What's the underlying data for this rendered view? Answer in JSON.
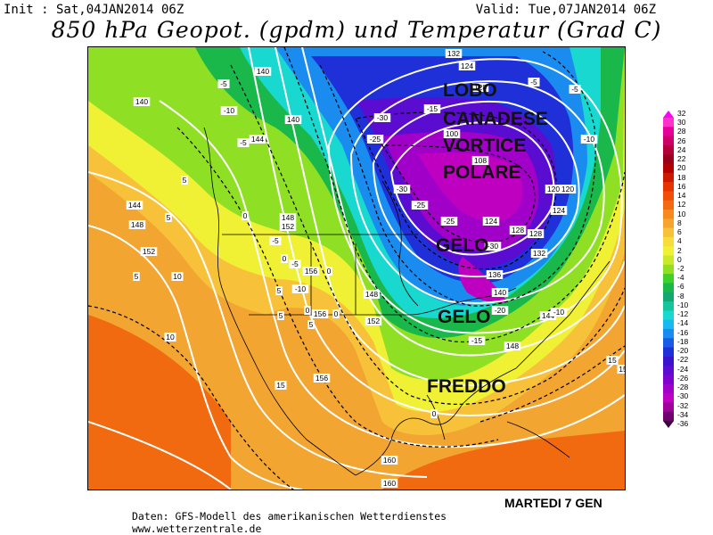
{
  "header": {
    "init": "Init : Sat,04JAN2014 06Z",
    "valid": "Valid: Tue,07JAN2014 06Z",
    "title": "850 hPa Geopot. (gpdm) und Temperatur (Grad C)"
  },
  "overlays": {
    "lobo": "LOBO",
    "canadese": "CANADESE",
    "vortice": "VORTICE",
    "polare": "POLARE",
    "gelo1": "GELO",
    "gelo2": "GELO",
    "freddo": "FREDDO"
  },
  "date_note": "MARTEDI 7 GEN",
  "credits": {
    "line1": "Daten: GFS-Modell des amerikanischen Wetterdienstes",
    "line2": "www.wetterzentrale.de"
  },
  "legend": {
    "labels": [
      "32",
      "30",
      "28",
      "26",
      "24",
      "22",
      "20",
      "18",
      "16",
      "14",
      "12",
      "10",
      "8",
      "6",
      "4",
      "2",
      "0",
      "-2",
      "-4",
      "-6",
      "-8",
      "-10",
      "-12",
      "-14",
      "-16",
      "-18",
      "-20",
      "-22",
      "-24",
      "-26",
      "-28",
      "-30",
      "-32",
      "-34",
      "-36"
    ],
    "colors": [
      "#ff00ff",
      "#ff33cc",
      "#e60099",
      "#cc0066",
      "#b3003a",
      "#99001a",
      "#b30000",
      "#cc1a00",
      "#e63300",
      "#f04f0a",
      "#f26a10",
      "#f58a1f",
      "#f5a52e",
      "#f7c23a",
      "#f7dc3a",
      "#f0f035",
      "#c8ea2a",
      "#8fe025",
      "#3fd02a",
      "#1ab84a",
      "#12a870",
      "#14c49a",
      "#18d8d0",
      "#18b8f0",
      "#1a8cf0",
      "#1a5ae6",
      "#2030d8",
      "#3a14cc",
      "#5a0cd0",
      "#8000d0",
      "#a000c8",
      "#c000c0",
      "#a0009a",
      "#700070",
      "#400040"
    ]
  },
  "map_labels": [
    {
      "text": "140"
    },
    {
      "text": "140"
    },
    {
      "text": "140"
    },
    {
      "text": "144"
    },
    {
      "text": "144"
    },
    {
      "text": "148"
    },
    {
      "text": "152"
    },
    {
      "text": "148"
    },
    {
      "text": "152"
    },
    {
      "text": "156"
    },
    {
      "text": "156"
    },
    {
      "text": "148"
    },
    {
      "text": "152"
    },
    {
      "text": "156"
    },
    {
      "text": "160"
    },
    {
      "text": "160"
    },
    {
      "text": "132"
    },
    {
      "text": "124"
    },
    {
      "text": "128"
    },
    {
      "text": "100"
    },
    {
      "text": "108"
    },
    {
      "text": "120"
    },
    {
      "text": "120"
    },
    {
      "text": "124"
    },
    {
      "text": "124"
    },
    {
      "text": "128"
    },
    {
      "text": "128"
    },
    {
      "text": "132"
    },
    {
      "text": "136"
    },
    {
      "text": "140"
    },
    {
      "text": "144"
    },
    {
      "text": "148"
    },
    {
      "text": "-5"
    },
    {
      "text": "-5"
    },
    {
      "text": "-5"
    },
    {
      "text": "-10"
    },
    {
      "text": "-15"
    },
    {
      "text": "-25"
    },
    {
      "text": "-30"
    },
    {
      "text": "-30"
    },
    {
      "text": "-25"
    },
    {
      "text": "-25"
    },
    {
      "text": "-30"
    },
    {
      "text": "-20"
    },
    {
      "text": "-15"
    },
    {
      "text": "-10"
    },
    {
      "text": "-5"
    },
    {
      "text": "-10"
    },
    {
      "text": "0"
    },
    {
      "text": "0"
    },
    {
      "text": "0"
    },
    {
      "text": "0"
    },
    {
      "text": "5"
    },
    {
      "text": "5"
    },
    {
      "text": "5"
    },
    {
      "text": "10"
    },
    {
      "text": "10"
    },
    {
      "text": "15"
    },
    {
      "text": "15"
    },
    {
      "text": "15"
    },
    {
      "text": "5"
    },
    {
      "text": "0"
    },
    {
      "text": "5"
    },
    {
      "text": "-5"
    },
    {
      "text": "-5"
    },
    {
      "text": "-10"
    },
    {
      "text": "5"
    },
    {
      "text": "0"
    }
  ]
}
